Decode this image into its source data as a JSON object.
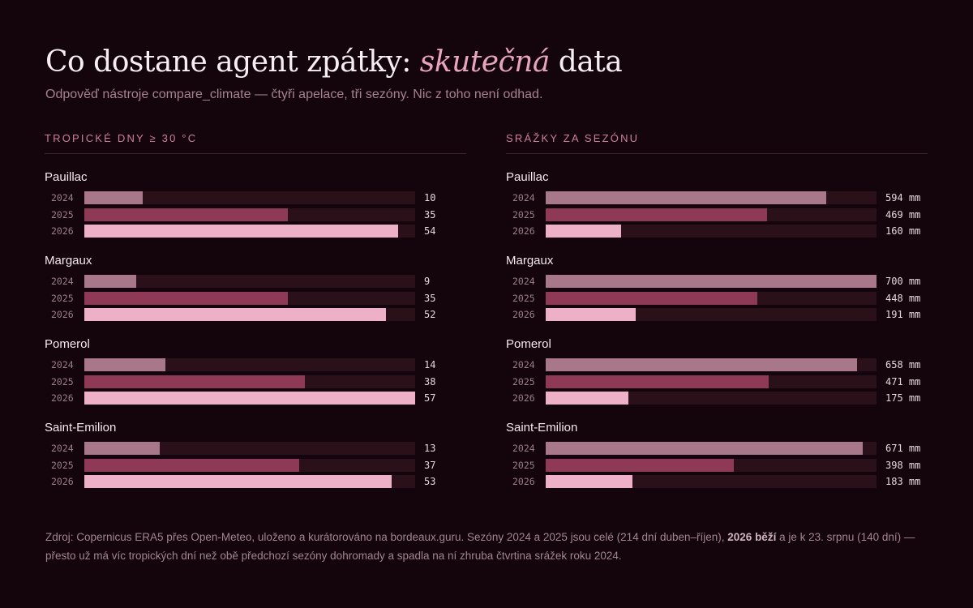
{
  "header": {
    "title_pre": "Co dostane agent zpátky: ",
    "title_accent": "skutečná",
    "title_post": " data",
    "subtitle": "Odpověď nástroje compare_climate — čtyři apelace, tři sezóny. Nic z toho není odhad."
  },
  "colors": {
    "background": "#14050c",
    "track": "#2a1019",
    "year_2024": "#a8788a",
    "year_2025": "#8e3a57",
    "year_2026": "#eeb0c7",
    "accent": "#e9a3bf"
  },
  "footnote": {
    "part1": "Zdroj: Copernicus ERA5 přes Open-Meteo, uloženo a kurátorováno na bordeaux.guru. Sezóny 2024 a 2025 jsou celé (214 dní duben–říjen), ",
    "bold": "2026 běží",
    "part2": " a je k 23. srpnu (140 dní) — přesto už má víc tropických dní než obě předchozí sezóny dohromady a spadla na ní zhruba čtvrtina srážek roku 2024."
  },
  "chart_data": [
    {
      "type": "bar",
      "title": "TROPICKÉ DNY ≥ 30 °C",
      "unit": "",
      "xlim": [
        0,
        57
      ],
      "years": [
        "2024",
        "2025",
        "2026"
      ],
      "groups": [
        {
          "name": "Pauillac",
          "values": [
            10,
            35,
            54
          ]
        },
        {
          "name": "Margaux",
          "values": [
            9,
            35,
            52
          ]
        },
        {
          "name": "Pomerol",
          "values": [
            14,
            38,
            57
          ]
        },
        {
          "name": "Saint-Emilion",
          "values": [
            13,
            37,
            53
          ]
        }
      ]
    },
    {
      "type": "bar",
      "title": "SRÁŽKY ZA SEZÓNU",
      "unit": "mm",
      "xlim": [
        0,
        700
      ],
      "years": [
        "2024",
        "2025",
        "2026"
      ],
      "groups": [
        {
          "name": "Pauillac",
          "values": [
            594,
            469,
            160
          ]
        },
        {
          "name": "Margaux",
          "values": [
            700,
            448,
            191
          ]
        },
        {
          "name": "Pomerol",
          "values": [
            658,
            471,
            175
          ]
        },
        {
          "name": "Saint-Emilion",
          "values": [
            671,
            398,
            183
          ]
        }
      ]
    }
  ]
}
